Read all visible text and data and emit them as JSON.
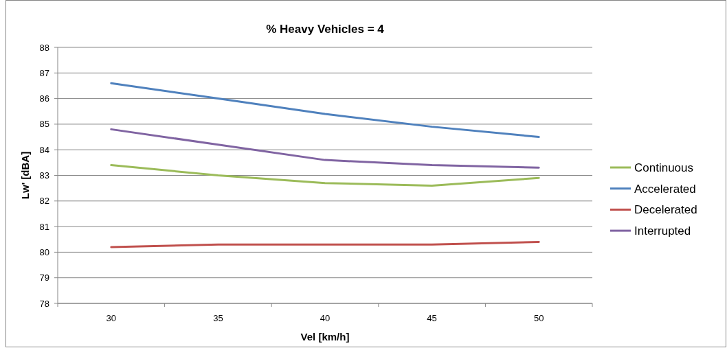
{
  "chart_data": {
    "type": "line",
    "title": "% Heavy Vehicles = 4",
    "xlabel": "Vel [km/h]",
    "ylabel": "Lw' [dBA]",
    "categories": [
      "30",
      "35",
      "40",
      "45",
      "50"
    ],
    "ylim": [
      78,
      88
    ],
    "yticks": [
      78,
      79,
      80,
      81,
      82,
      83,
      84,
      85,
      86,
      87,
      88
    ],
    "grid": "y",
    "legend": "right",
    "marker": "none",
    "series": [
      {
        "name": "Continuous",
        "color": "#9bbb59",
        "values": [
          83.4,
          83.0,
          82.7,
          82.6,
          82.9
        ]
      },
      {
        "name": "Accelerated",
        "color": "#4f81bd",
        "values": [
          86.6,
          86.0,
          85.4,
          84.9,
          84.5
        ]
      },
      {
        "name": "Decelerated",
        "color": "#c0504d",
        "values": [
          80.2,
          80.3,
          80.3,
          80.3,
          80.4
        ]
      },
      {
        "name": "Interrupted",
        "color": "#8064a2",
        "values": [
          84.8,
          84.2,
          83.6,
          83.4,
          83.3
        ]
      }
    ]
  }
}
